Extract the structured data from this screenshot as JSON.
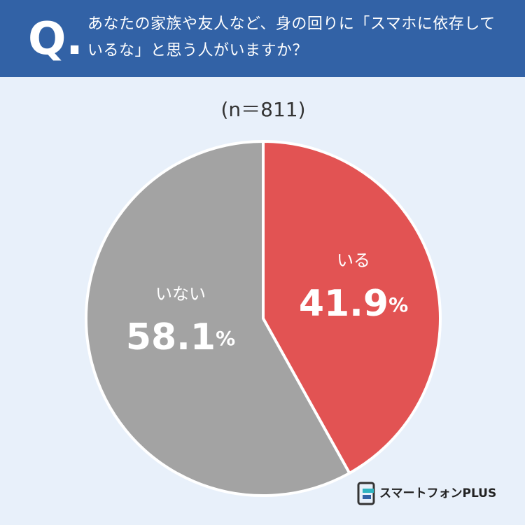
{
  "chart_data": {
    "type": "pie",
    "question_label": "Q.",
    "title": "あなたの家族や友人など、身の回りに「スマホに依存しているな」と思う人がいますか？",
    "subtitle": "(n＝811)",
    "categories": [
      "いる",
      "いない"
    ],
    "values": [
      41.9,
      58.1
    ],
    "value_labels": [
      "41.9%",
      "58.1%"
    ],
    "colors": [
      "#e25353",
      "#a3a3a3"
    ],
    "logo": "スマートフォンPLUS"
  }
}
